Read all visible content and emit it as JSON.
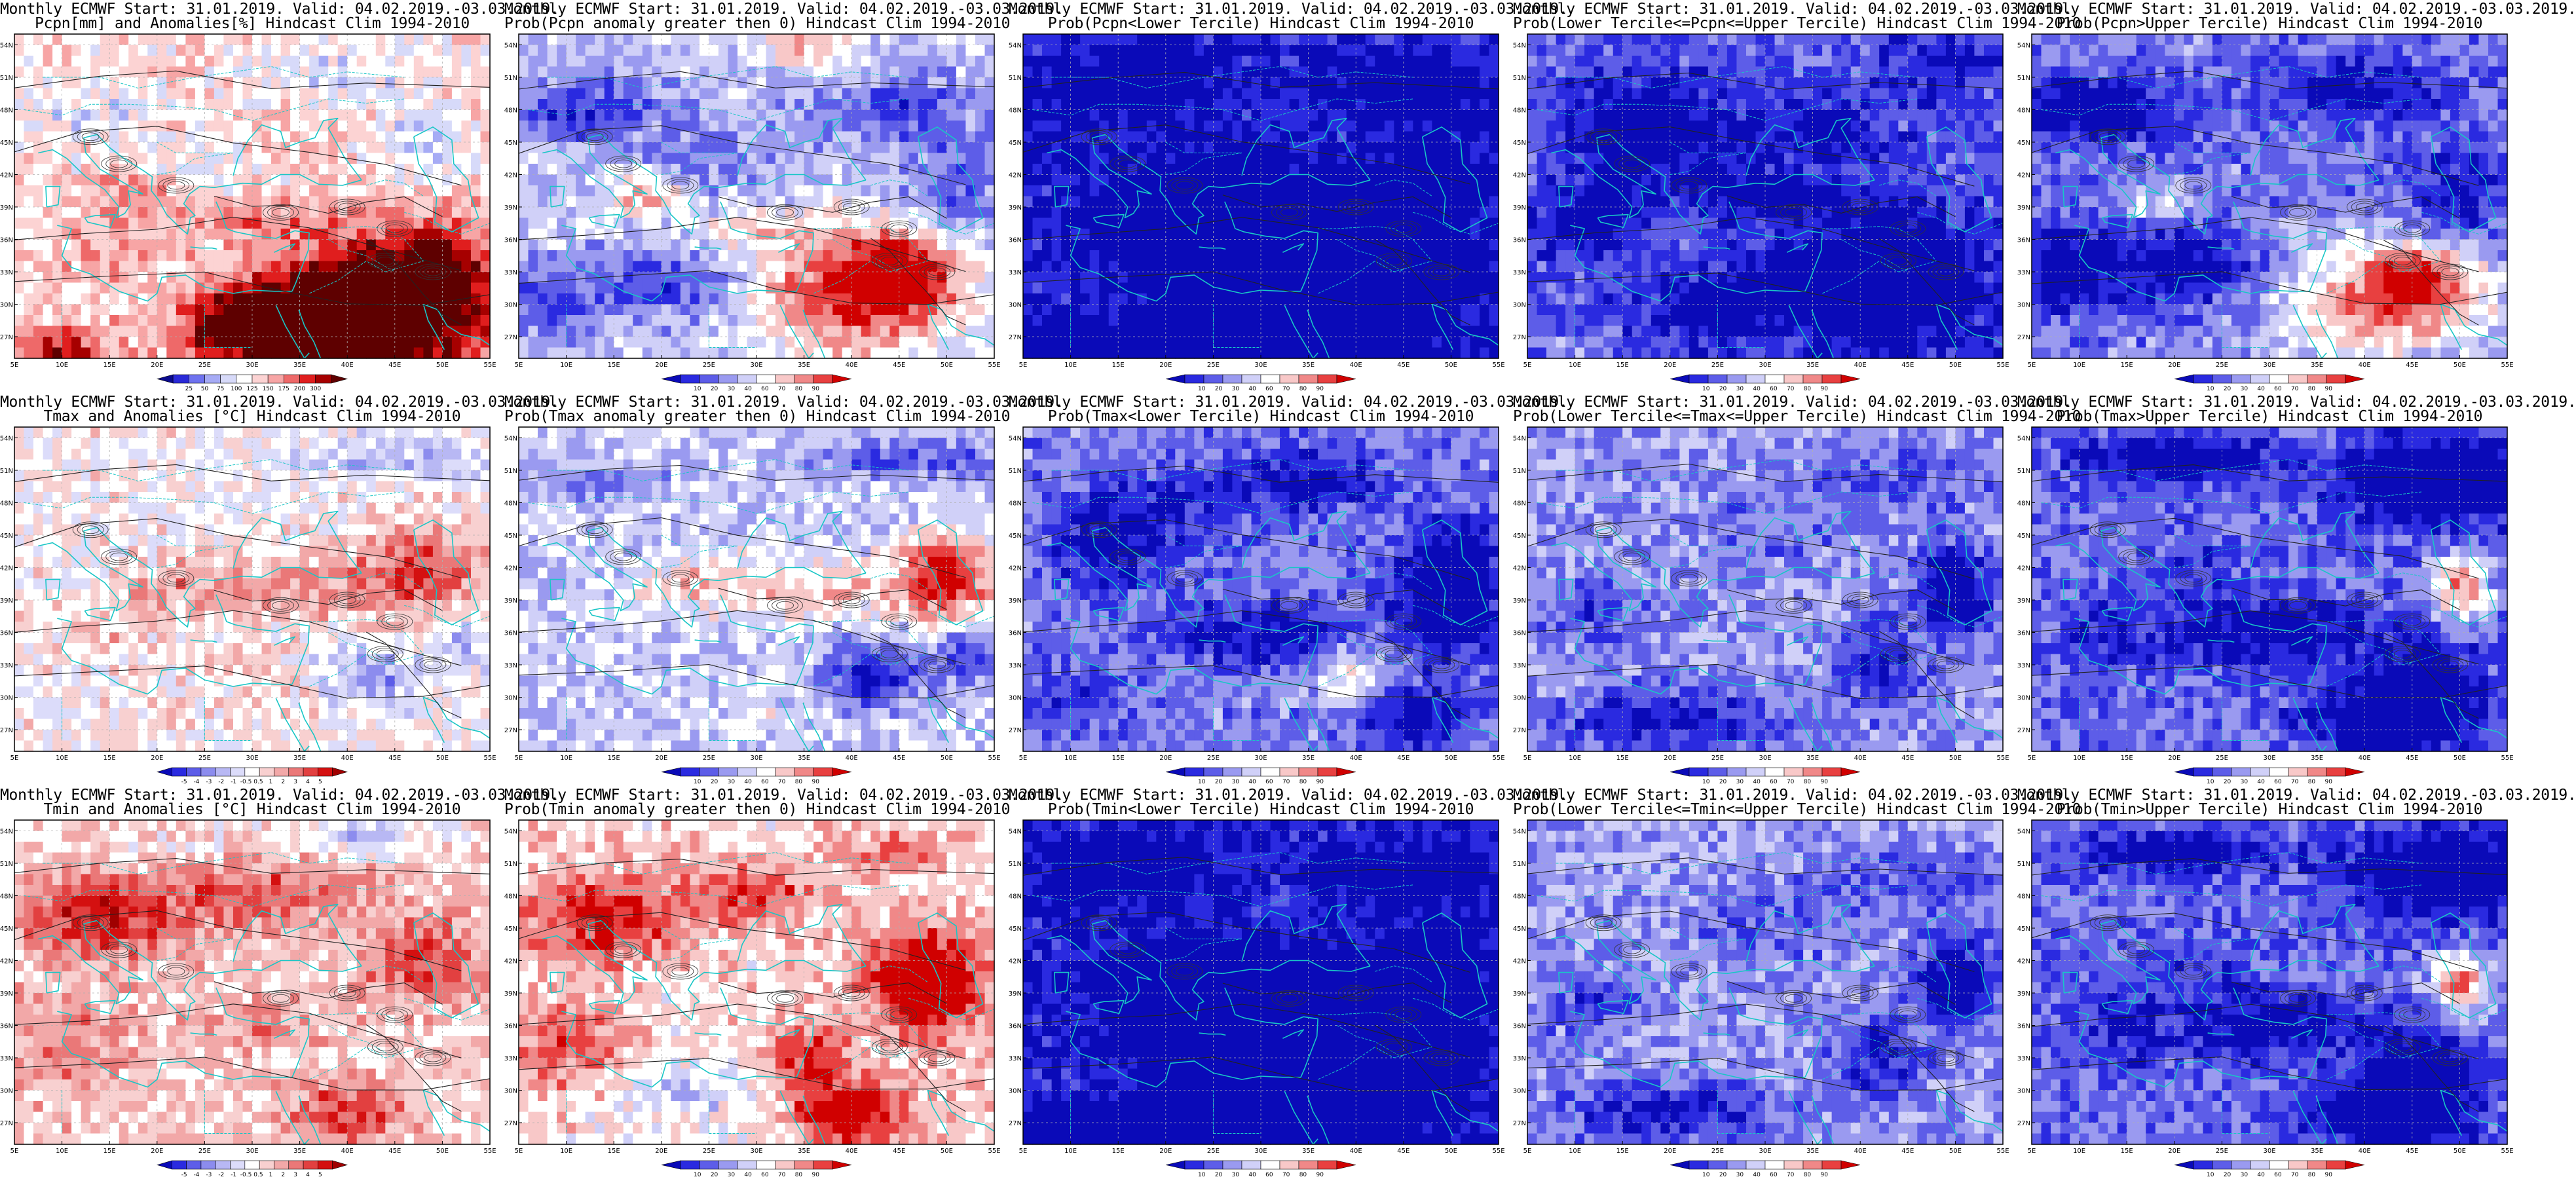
{
  "chart_data": {
    "type": "heatmap",
    "grid": {
      "rows": 3,
      "cols": 5
    },
    "map_extent": {
      "lon": [
        5,
        55
      ],
      "lat": [
        25,
        55
      ]
    },
    "x_ticks": [
      "5E",
      "10E",
      "15E",
      "20E",
      "25E",
      "30E",
      "35E",
      "40E",
      "45E",
      "50E",
      "55E"
    ],
    "y_ticks": [
      "27N",
      "30N",
      "33N",
      "36N",
      "39N",
      "42N",
      "45N",
      "48N",
      "51N",
      "54N"
    ],
    "colorbars": {
      "pcpn_anom": {
        "labels": [
          "25",
          "50",
          "75",
          "100",
          "125",
          "150",
          "175",
          "200",
          "300"
        ],
        "colors": [
          "#0b0b8e",
          "#2a2ad8",
          "#6f73ef",
          "#a6abf5",
          "#d7daf9",
          "#ffffff",
          "#fcd3d3",
          "#f7a5a5",
          "#ee6969",
          "#e01e1e",
          "#a60000",
          "#5e0000"
        ]
      },
      "prob": {
        "labels": [
          "10",
          "20",
          "30",
          "40",
          "60",
          "70",
          "80",
          "90"
        ],
        "colors": [
          "#0a0ab8",
          "#2a2ae0",
          "#5d5de8",
          "#9a9af0",
          "#d0d0f8",
          "#ffffff",
          "#f8c8c8",
          "#f08888",
          "#e84040",
          "#d00000"
        ]
      },
      "temp_anom": {
        "labels": [
          "-5",
          "-4",
          "-3",
          "-2",
          "-1",
          "-0.5",
          "0.5",
          "1",
          "2",
          "3",
          "4",
          "5"
        ],
        "colors": [
          "#0a0ab8",
          "#2a2ae0",
          "#5d5de8",
          "#8c8cee",
          "#b8b8f4",
          "#dcdcfa",
          "#ffffff",
          "#f8d0d0",
          "#f2a8a8",
          "#ea7878",
          "#e24040",
          "#d41010",
          "#a00000"
        ]
      }
    },
    "panels": [
      {
        "line1": "Monthly ECMWF Start: 31.01.2019. Valid: 04.02.2019.-03.03.2019.",
        "line2": "Pcpn[mm] and Anomalies[%] Hindcast Clim 1994-2010",
        "colorbar": "pcpn_anom",
        "pattern": "precip_anom"
      },
      {
        "line1": "Monthly ECMWF Start: 31.01.2019. Valid: 04.02.2019.-03.03.2019.",
        "line2": "Prob(Pcpn anomaly greater then 0) Hindcast Clim 1994-2010",
        "colorbar": "prob",
        "pattern": "precip_prob_pos"
      },
      {
        "line1": "Monthly ECMWF Start: 31.01.2019. Valid: 04.02.2019.-03.03.2019.",
        "line2": "Prob(Pcpn<Lower Tercile) Hindcast Clim 1994-2010",
        "colorbar": "prob",
        "pattern": "prob_deep_blue"
      },
      {
        "line1": "Monthly ECMWF Start: 31.01.2019. Valid: 04.02.2019.-03.03.2019.",
        "line2": "Prob(Lower Tercile<=Pcpn<=Upper Tercile) Hindcast Clim 1994-2010",
        "colorbar": "prob",
        "pattern": "prob_blue"
      },
      {
        "line1": "Monthly ECMWF Start: 31.01.2019. Valid: 04.02.2019.-03.03.2019.",
        "line2": "Prob(Pcpn>Upper Tercile) Hindcast Clim 1994-2010",
        "colorbar": "prob",
        "pattern": "precip_prob_upper"
      },
      {
        "line1": "Monthly ECMWF Start: 31.01.2019. Valid: 04.02.2019.-03.03.2019.",
        "line2": "Tmax and Anomalies [°C] Hindcast Clim 1994-2010",
        "colorbar": "temp_anom",
        "pattern": "temp_anom_mild"
      },
      {
        "line1": "Monthly ECMWF Start: 31.01.2019. Valid: 04.02.2019.-03.03.2019.",
        "line2": "Prob(Tmax anomaly greater then 0) Hindcast Clim 1994-2010",
        "colorbar": "prob",
        "pattern": "tmax_prob_pos"
      },
      {
        "line1": "Monthly ECMWF Start: 31.01.2019. Valid: 04.02.2019.-03.03.2019.",
        "line2": "Prob(Tmax<Lower Tercile) Hindcast Clim 1994-2010",
        "colorbar": "prob",
        "pattern": "prob_mixed_blue"
      },
      {
        "line1": "Monthly ECMWF Start: 31.01.2019. Valid: 04.02.2019.-03.03.2019.",
        "line2": "Prob(Lower Tercile<=Tmax<=Upper Tercile) Hindcast Clim 1994-2010",
        "colorbar": "prob",
        "pattern": "prob_light_blue"
      },
      {
        "line1": "Monthly ECMWF Start: 31.01.2019. Valid: 04.02.2019.-03.03.2019.",
        "line2": "Prob(Tmax>Upper Tercile) Hindcast Clim 1994-2010",
        "colorbar": "prob",
        "pattern": "prob_blue_redspot"
      },
      {
        "line1": "Monthly ECMWF Start: 31.01.2019. Valid: 04.02.2019.-03.03.2019.",
        "line2": "Tmin and Anomalies [°C] Hindcast Clim 1994-2010",
        "colorbar": "temp_anom",
        "pattern": "tmin_anom"
      },
      {
        "line1": "Monthly ECMWF Start: 31.01.2019. Valid: 04.02.2019.-03.03.2019.",
        "line2": "Prob(Tmin anomaly greater then 0) Hindcast Clim 1994-2010",
        "colorbar": "prob",
        "pattern": "tmin_prob_pos"
      },
      {
        "line1": "Monthly ECMWF Start: 31.01.2019. Valid: 04.02.2019.-03.03.2019.",
        "line2": "Prob(Tmin<Lower Tercile) Hindcast Clim 1994-2010",
        "colorbar": "prob",
        "pattern": "prob_deep_blue"
      },
      {
        "line1": "Monthly ECMWF Start: 31.01.2019. Valid: 04.02.2019.-03.03.2019.",
        "line2": "Prob(Lower Tercile<=Tmin<=Upper Tercile) Hindcast Clim 1994-2010",
        "colorbar": "prob",
        "pattern": "prob_light_blue"
      },
      {
        "line1": "Monthly ECMWF Start: 31.01.2019. Valid: 04.02.2019.-03.03.2019.",
        "line2": "Prob(Tmin>Upper Tercile) Hindcast Clim 1994-2010",
        "colorbar": "prob",
        "pattern": "prob_blue_redspot"
      }
    ]
  }
}
